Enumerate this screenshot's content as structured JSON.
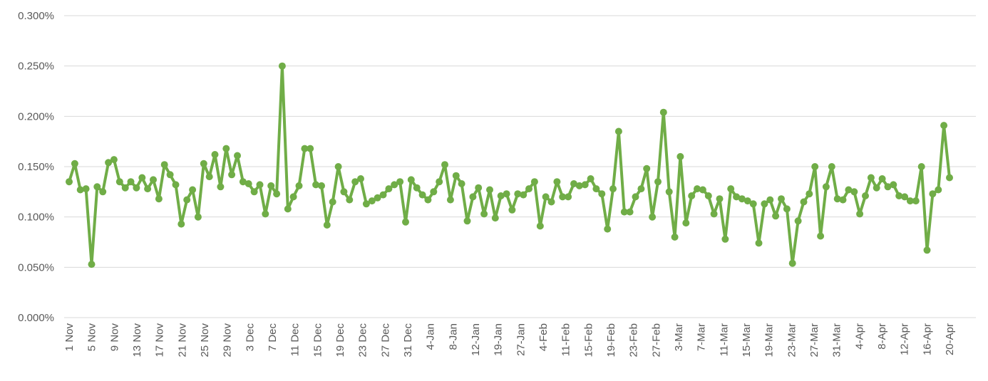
{
  "chart_data": {
    "type": "line",
    "title": "",
    "xlabel": "",
    "ylabel": "",
    "ylim": [
      0,
      0.3
    ],
    "yticks": [
      "0.000%",
      "0.050%",
      "0.100%",
      "0.150%",
      "0.200%",
      "0.250%",
      "0.300%"
    ],
    "grid": true,
    "legend": "none",
    "colors": {
      "series": "#70ad47",
      "grid": "#d9d9d9",
      "tick_text": "#595959"
    },
    "x_tick_labels": [
      "1 Nov",
      "5 Nov",
      "9 Nov",
      "13 Nov",
      "17 Nov",
      "21 Nov",
      "25 Nov",
      "29 Nov",
      "3 Dec",
      "7 Dec",
      "11 Dec",
      "15 Dec",
      "19 Dec",
      "23 Dec",
      "27 Dec",
      "31 Dec",
      "4-Jan",
      "8-Jan",
      "12-Jan",
      "19-Jan",
      "27-Jan",
      "4-Feb",
      "11-Feb",
      "15-Feb",
      "19-Feb",
      "23-Feb",
      "27-Feb",
      "3-Mar",
      "7-Mar",
      "11-Mar",
      "15-Mar",
      "19-Mar",
      "23-Mar",
      "27-Mar",
      "31-Mar",
      "4-Apr",
      "8-Apr",
      "12-Apr",
      "16-Apr",
      "20-Apr"
    ],
    "series": [
      {
        "values": [
          0.135,
          0.153,
          0.127,
          0.128,
          0.053,
          0.13,
          0.125,
          0.154,
          0.157,
          0.135,
          0.129,
          0.135,
          0.129,
          0.139,
          0.128,
          0.137,
          0.118,
          0.152,
          0.142,
          0.132,
          0.093,
          0.117,
          0.127,
          0.1,
          0.153,
          0.14,
          0.162,
          0.13,
          0.168,
          0.142,
          0.161,
          0.135,
          0.133,
          0.125,
          0.132,
          0.103,
          0.131,
          0.123,
          0.25,
          0.108,
          0.12,
          0.131,
          0.168,
          0.168,
          0.132,
          0.131,
          0.092,
          0.115,
          0.15,
          0.125,
          0.117,
          0.135,
          0.138,
          0.113,
          0.116,
          0.119,
          0.122,
          0.128,
          0.132,
          0.135,
          0.095,
          0.137,
          0.129,
          0.122,
          0.117,
          0.125,
          0.135,
          0.152,
          0.117,
          0.141,
          0.133,
          0.096,
          0.12,
          0.129,
          0.103,
          0.127,
          0.099,
          0.121,
          0.123,
          0.107,
          0.123,
          0.122,
          0.128,
          0.135,
          0.091,
          0.12,
          0.115,
          0.135,
          0.12,
          0.12,
          0.133,
          0.131,
          0.132,
          0.138,
          0.128,
          0.123,
          0.088,
          0.128,
          0.185,
          0.105,
          0.105,
          0.12,
          0.128,
          0.148,
          0.1,
          0.135,
          0.204,
          0.125,
          0.08,
          0.16,
          0.094,
          0.121,
          0.128,
          0.127,
          0.121,
          0.103,
          0.118,
          0.078,
          0.128,
          0.12,
          0.118,
          0.116,
          0.113,
          0.074,
          0.113,
          0.117,
          0.101,
          0.118,
          0.108,
          0.054,
          0.096,
          0.115,
          0.123,
          0.15,
          0.081,
          0.13,
          0.15,
          0.118,
          0.117,
          0.127,
          0.125,
          0.103,
          0.121,
          0.139,
          0.129,
          0.138,
          0.13,
          0.132,
          0.121,
          0.12,
          0.116,
          0.116,
          0.15,
          0.067,
          0.123,
          0.127,
          0.191,
          0.139
        ]
      }
    ]
  }
}
